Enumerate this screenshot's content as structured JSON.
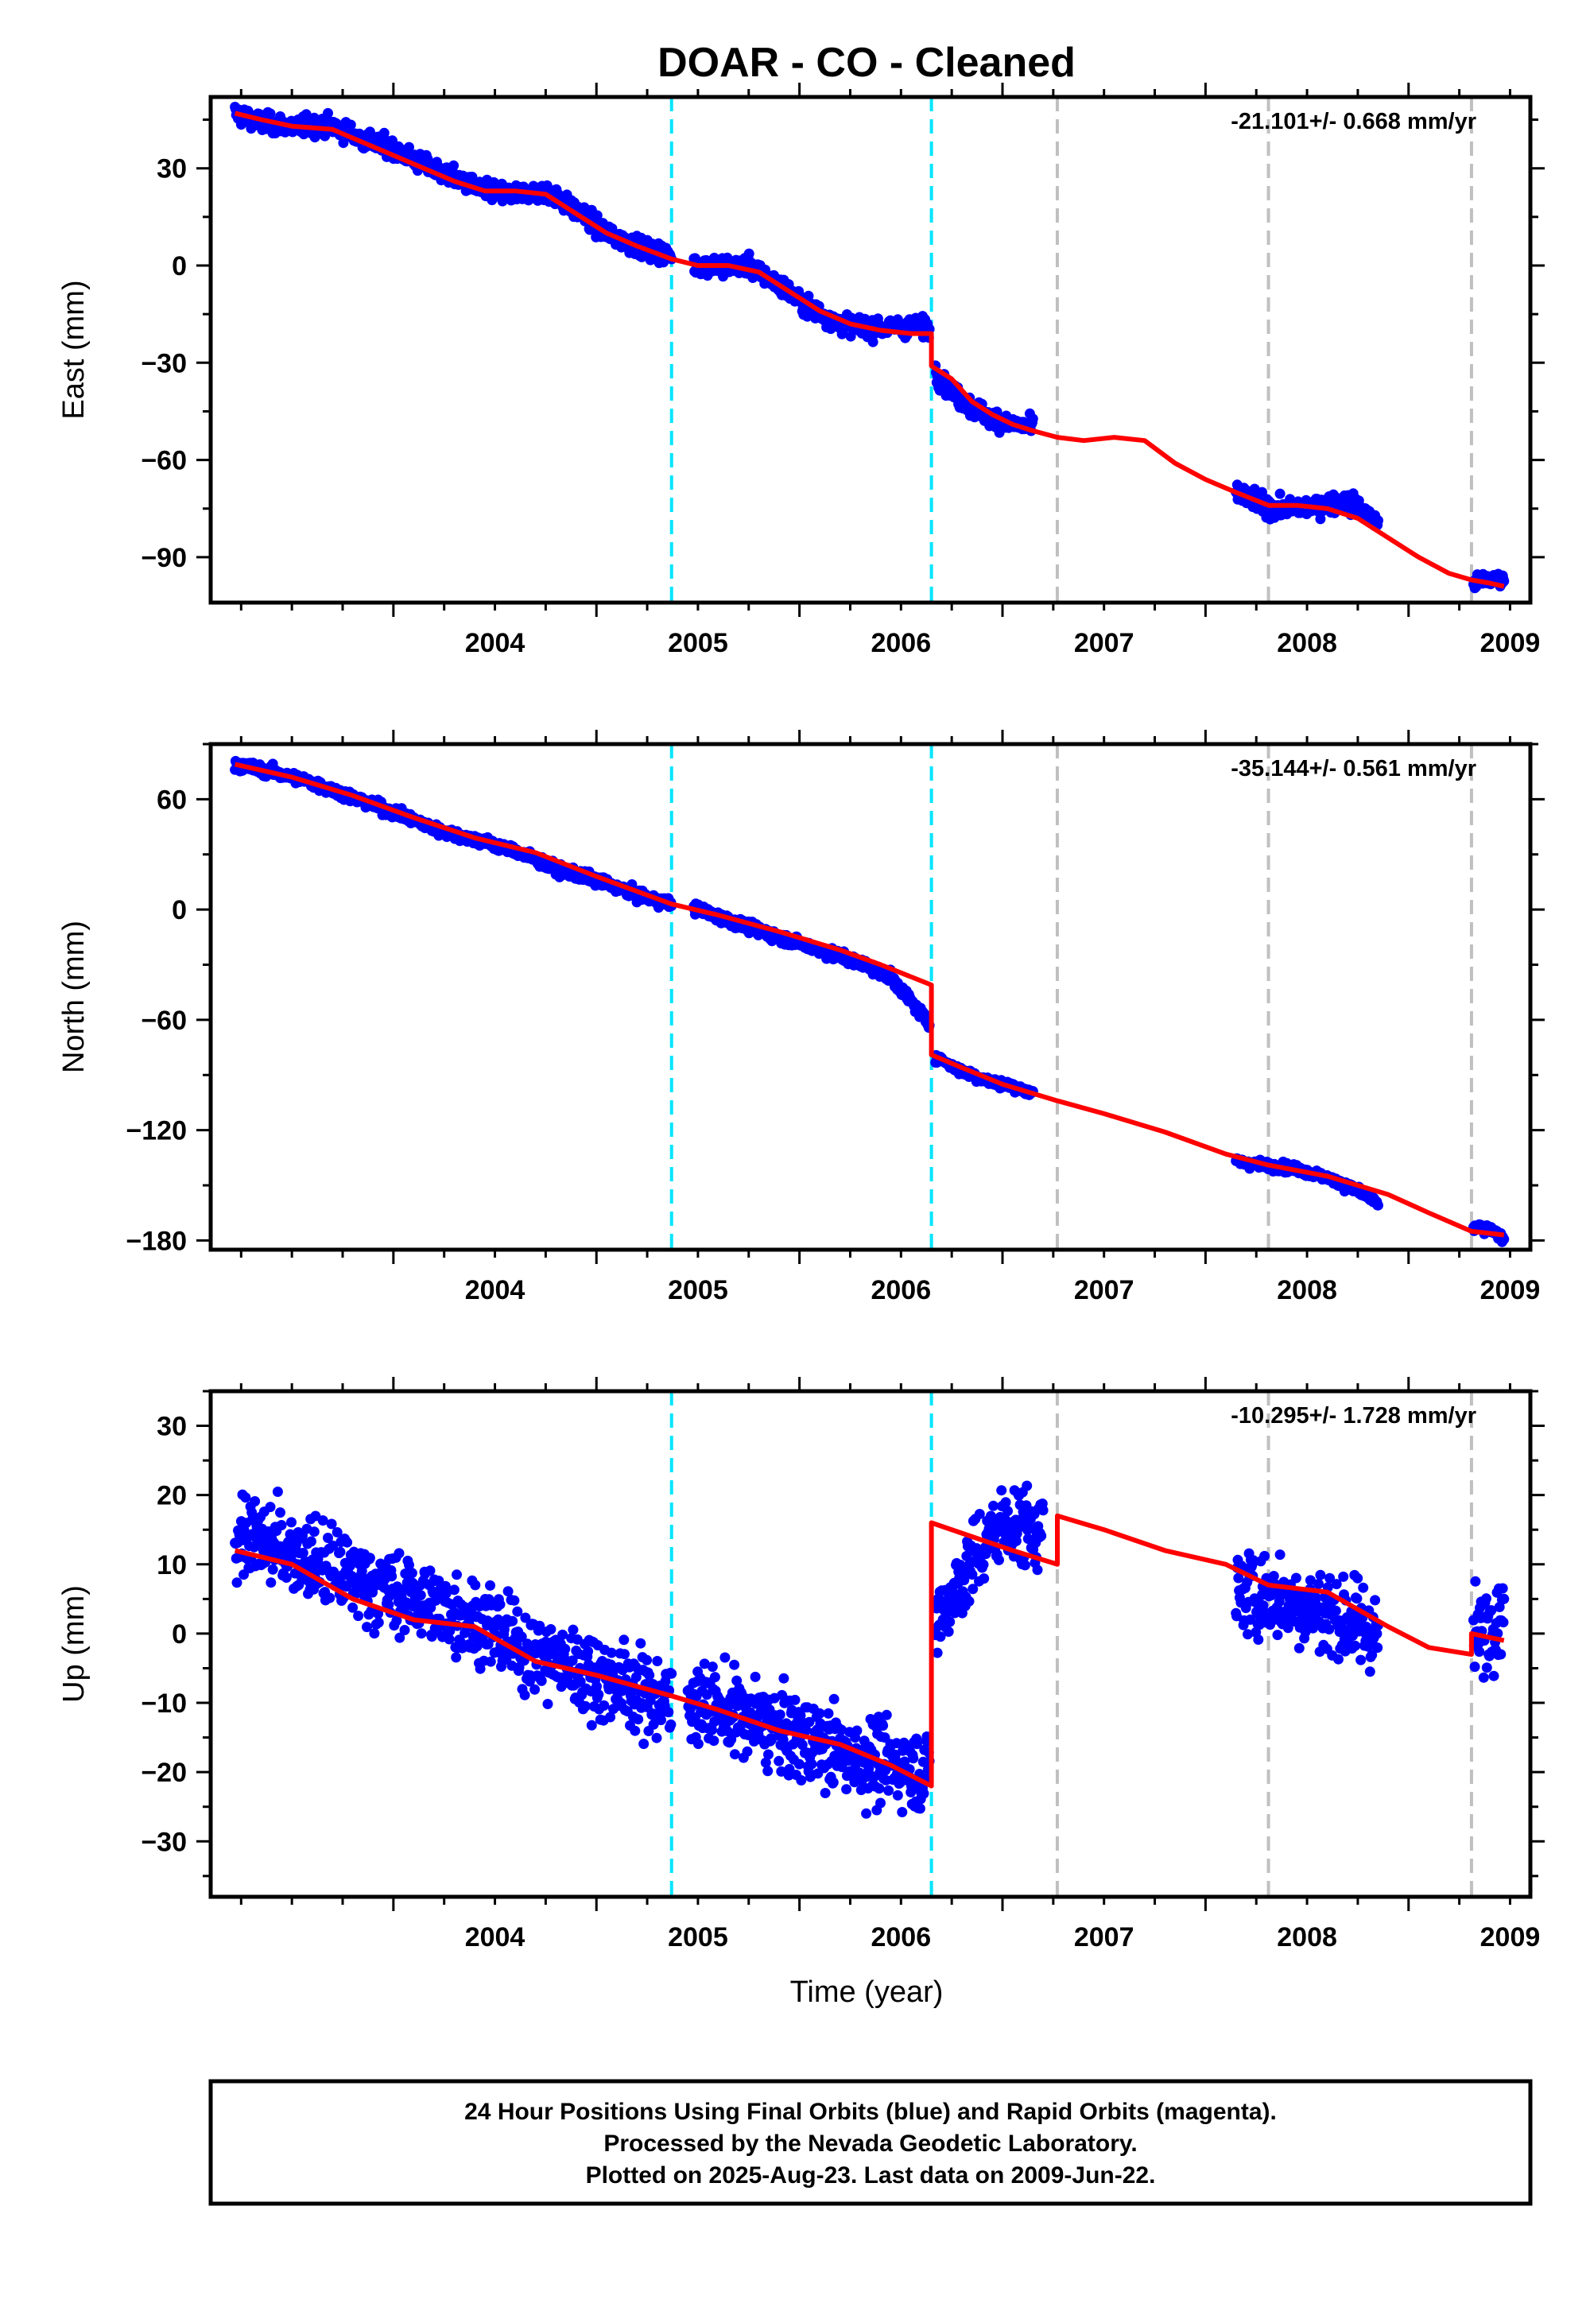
{
  "title": "DOAR  - CO - Cleaned",
  "xlabel": "Time (year)",
  "footer": {
    "line1": "24 Hour Positions Using Final Orbits (blue) and Rapid Orbits (magenta).",
    "line2": "Processed by the Nevada Geodetic Laboratory.",
    "line3": "Plotted on 2025-Aug-23. Last data on 2009-Jun-22."
  },
  "colors": {
    "data": "#0000ff",
    "model": "#ff0000",
    "equipment_change": "#00e5ff",
    "unknown_change": "#c0c0c0",
    "frame": "#000000"
  },
  "chart_data": [
    {
      "type": "scatter",
      "component": "east",
      "ylabel": "East (mm)",
      "rate_label": "-21.101+/- 0.668 mm/yr",
      "xlim": [
        2003.1,
        2009.6
      ],
      "ylim": [
        -104,
        52
      ],
      "xticks": [
        "2004",
        "2005",
        "2006",
        "2007",
        "2008",
        "2009"
      ],
      "yticks": [
        30,
        0,
        -30,
        -60,
        -90
      ],
      "cyan_lines": [
        2005.37,
        2006.65
      ],
      "gray_lines": [
        2007.27,
        2008.31,
        2009.31
      ],
      "data_segments": [
        {
          "x": [
            2003.22,
            2003.35,
            2003.5,
            2003.7,
            2003.85,
            2004.0,
            2004.15,
            2004.3,
            2004.45,
            2004.6,
            2004.75,
            2004.9,
            2005.05,
            2005.2,
            2005.37
          ],
          "y": [
            47,
            44,
            43,
            43,
            39,
            36,
            31,
            27,
            23,
            22,
            23,
            17,
            10,
            6,
            3
          ],
          "noise": 2.5
        },
        {
          "x": [
            2005.48,
            2005.6,
            2005.75,
            2005.9,
            2006.05,
            2006.2,
            2006.35,
            2006.5,
            2006.64
          ],
          "y": [
            0,
            0,
            0,
            -6,
            -13,
            -18,
            -19,
            -19,
            -19
          ],
          "noise": 2.5
        },
        {
          "x": [
            2006.67,
            2006.75,
            2006.85,
            2006.95,
            2007.05,
            2007.15
          ],
          "y": [
            -33,
            -39,
            -44,
            -47,
            -49,
            -50
          ],
          "noise": 2.5
        },
        {
          "x": [
            2008.15,
            2008.25,
            2008.35,
            2008.45,
            2008.55,
            2008.65,
            2008.75,
            2008.85
          ],
          "y": [
            -70,
            -73,
            -75,
            -75,
            -74,
            -73,
            -74,
            -80
          ],
          "noise": 2.5
        },
        {
          "x": [
            2009.32,
            2009.4,
            2009.47
          ],
          "y": [
            -98,
            -97,
            -97
          ],
          "noise": 2.0
        }
      ],
      "model": {
        "x": [
          2003.22,
          2003.35,
          2003.5,
          2003.7,
          2003.85,
          2004.0,
          2004.15,
          2004.3,
          2004.45,
          2004.6,
          2004.75,
          2004.9,
          2005.05,
          2005.2,
          2005.37,
          2005.5,
          2005.65,
          2005.8,
          2005.95,
          2006.1,
          2006.25,
          2006.4,
          2006.55,
          2006.65,
          2006.65,
          2006.75,
          2006.85,
          2006.95,
          2007.05,
          2007.15,
          2007.27,
          2007.4,
          2007.55,
          2007.7,
          2007.85,
          2008.0,
          2008.15,
          2008.31,
          2008.45,
          2008.6,
          2008.75,
          2008.9,
          2009.05,
          2009.2,
          2009.31,
          2009.31,
          2009.4,
          2009.47
        ],
        "y": [
          47,
          45,
          43,
          42,
          38,
          34,
          30,
          26,
          23,
          23,
          22,
          16,
          10,
          6,
          2,
          0,
          0,
          -2,
          -8,
          -14,
          -18,
          -20,
          -21,
          -21,
          -31,
          -35,
          -42,
          -46,
          -49,
          -51,
          -53,
          -54,
          -53,
          -54,
          -61,
          -66,
          -70,
          -74,
          -74,
          -75,
          -78,
          -84,
          -90,
          -95,
          -97,
          -97,
          -98,
          -99
        ]
      }
    },
    {
      "type": "scatter",
      "component": "north",
      "ylabel": "North (mm)",
      "rate_label": "-35.144+/- 0.561 mm/yr",
      "xlim": [
        2003.1,
        2009.6
      ],
      "ylim": [
        -185,
        90
      ],
      "xticks": [
        "2004",
        "2005",
        "2006",
        "2007",
        "2008",
        "2009"
      ],
      "yticks": [
        60,
        0,
        -60,
        -120,
        -180
      ],
      "cyan_lines": [
        2005.37,
        2006.65
      ],
      "gray_lines": [
        2007.27,
        2008.31,
        2009.31
      ],
      "data_segments": [
        {
          "x": [
            2003.22,
            2003.4,
            2003.6,
            2003.8,
            2004.0,
            2004.2,
            2004.4,
            2004.6,
            2004.8,
            2005.0,
            2005.2,
            2005.37
          ],
          "y": [
            79,
            75,
            69,
            61,
            53,
            44,
            38,
            32,
            22,
            16,
            8,
            3
          ],
          "noise": 2.5
        },
        {
          "x": [
            2005.48,
            2005.7,
            2005.9,
            2006.1,
            2006.3,
            2006.45,
            2006.55,
            2006.64
          ],
          "y": [
            1,
            -8,
            -15,
            -22,
            -29,
            -37,
            -50,
            -62
          ],
          "noise": 2.5
        },
        {
          "x": [
            2006.67,
            2006.8,
            2006.95,
            2007.05,
            2007.15
          ],
          "y": [
            -80,
            -88,
            -94,
            -96,
            -100
          ],
          "noise": 2.0
        },
        {
          "x": [
            2008.15,
            2008.3,
            2008.45,
            2008.6,
            2008.75,
            2008.85
          ],
          "y": [
            -137,
            -139,
            -141,
            -146,
            -153,
            -160
          ],
          "noise": 2.0
        },
        {
          "x": [
            2009.32,
            2009.4,
            2009.47
          ],
          "y": [
            -173,
            -174,
            -179
          ],
          "noise": 2.0
        }
      ],
      "model": {
        "x": [
          2003.22,
          2003.5,
          2003.8,
          2004.1,
          2004.4,
          2004.7,
          2005.0,
          2005.37,
          2005.6,
          2005.9,
          2006.2,
          2006.4,
          2006.65,
          2006.65,
          2006.8,
          2007.0,
          2007.27,
          2007.5,
          2007.8,
          2008.1,
          2008.31,
          2008.6,
          2008.9,
          2009.1,
          2009.31,
          2009.31,
          2009.47
        ],
        "y": [
          79,
          72,
          62,
          50,
          39,
          31,
          18,
          3,
          -3,
          -12,
          -22,
          -30,
          -41,
          -79,
          -86,
          -95,
          -104,
          -111,
          -121,
          -133,
          -139,
          -145,
          -155,
          -165,
          -175,
          -175,
          -177
        ]
      }
    },
    {
      "type": "scatter",
      "component": "up",
      "ylabel": "Up (mm)",
      "rate_label": "-10.295+/- 1.728 mm/yr",
      "xlim": [
        2003.1,
        2009.6
      ],
      "ylim": [
        -38,
        35
      ],
      "xticks": [
        "2004",
        "2005",
        "2006",
        "2007",
        "2008",
        "2009"
      ],
      "yticks": [
        30,
        20,
        10,
        0,
        -10,
        -20,
        -30
      ],
      "cyan_lines": [
        2005.37,
        2006.65
      ],
      "gray_lines": [
        2007.27,
        2008.31,
        2009.31
      ],
      "data_segments": [
        {
          "x": [
            2003.22,
            2003.5,
            2003.8,
            2004.1,
            2004.4,
            2004.7,
            2005.0,
            2005.37
          ],
          "y": [
            14,
            12,
            8,
            5,
            2,
            -3,
            -6,
            -10
          ],
          "noise": 5.0
        },
        {
          "x": [
            2005.45,
            2005.7,
            2006.0,
            2006.3,
            2006.64
          ],
          "y": [
            -9,
            -12,
            -15,
            -18,
            -20
          ],
          "noise": 5.0
        },
        {
          "x": [
            2006.67,
            2006.85,
            2007.0,
            2007.2
          ],
          "y": [
            2,
            10,
            16,
            15
          ],
          "noise": 5.0
        },
        {
          "x": [
            2008.15,
            2008.4,
            2008.6,
            2008.85
          ],
          "y": [
            6,
            5,
            3,
            0
          ],
          "noise": 5.5
        },
        {
          "x": [
            2009.32,
            2009.4,
            2009.47
          ],
          "y": [
            -1,
            2,
            4
          ],
          "noise": 5.5
        }
      ],
      "model": {
        "x": [
          2003.22,
          2003.5,
          2003.8,
          2004.1,
          2004.4,
          2004.7,
          2005.0,
          2005.37,
          2005.6,
          2005.9,
          2006.2,
          2006.45,
          2006.65,
          2006.65,
          2006.85,
          2007.05,
          2007.27,
          2007.27,
          2007.5,
          2007.8,
          2008.1,
          2008.31,
          2008.6,
          2008.9,
          2009.1,
          2009.31,
          2009.31,
          2009.47
        ],
        "y": [
          12,
          10,
          5,
          2,
          1,
          -4,
          -6,
          -9,
          -11,
          -14,
          -16,
          -19,
          -22,
          16,
          14,
          12,
          10,
          17,
          15,
          12,
          10,
          7,
          6,
          1,
          -2,
          -3,
          0,
          -1
        ]
      }
    }
  ]
}
